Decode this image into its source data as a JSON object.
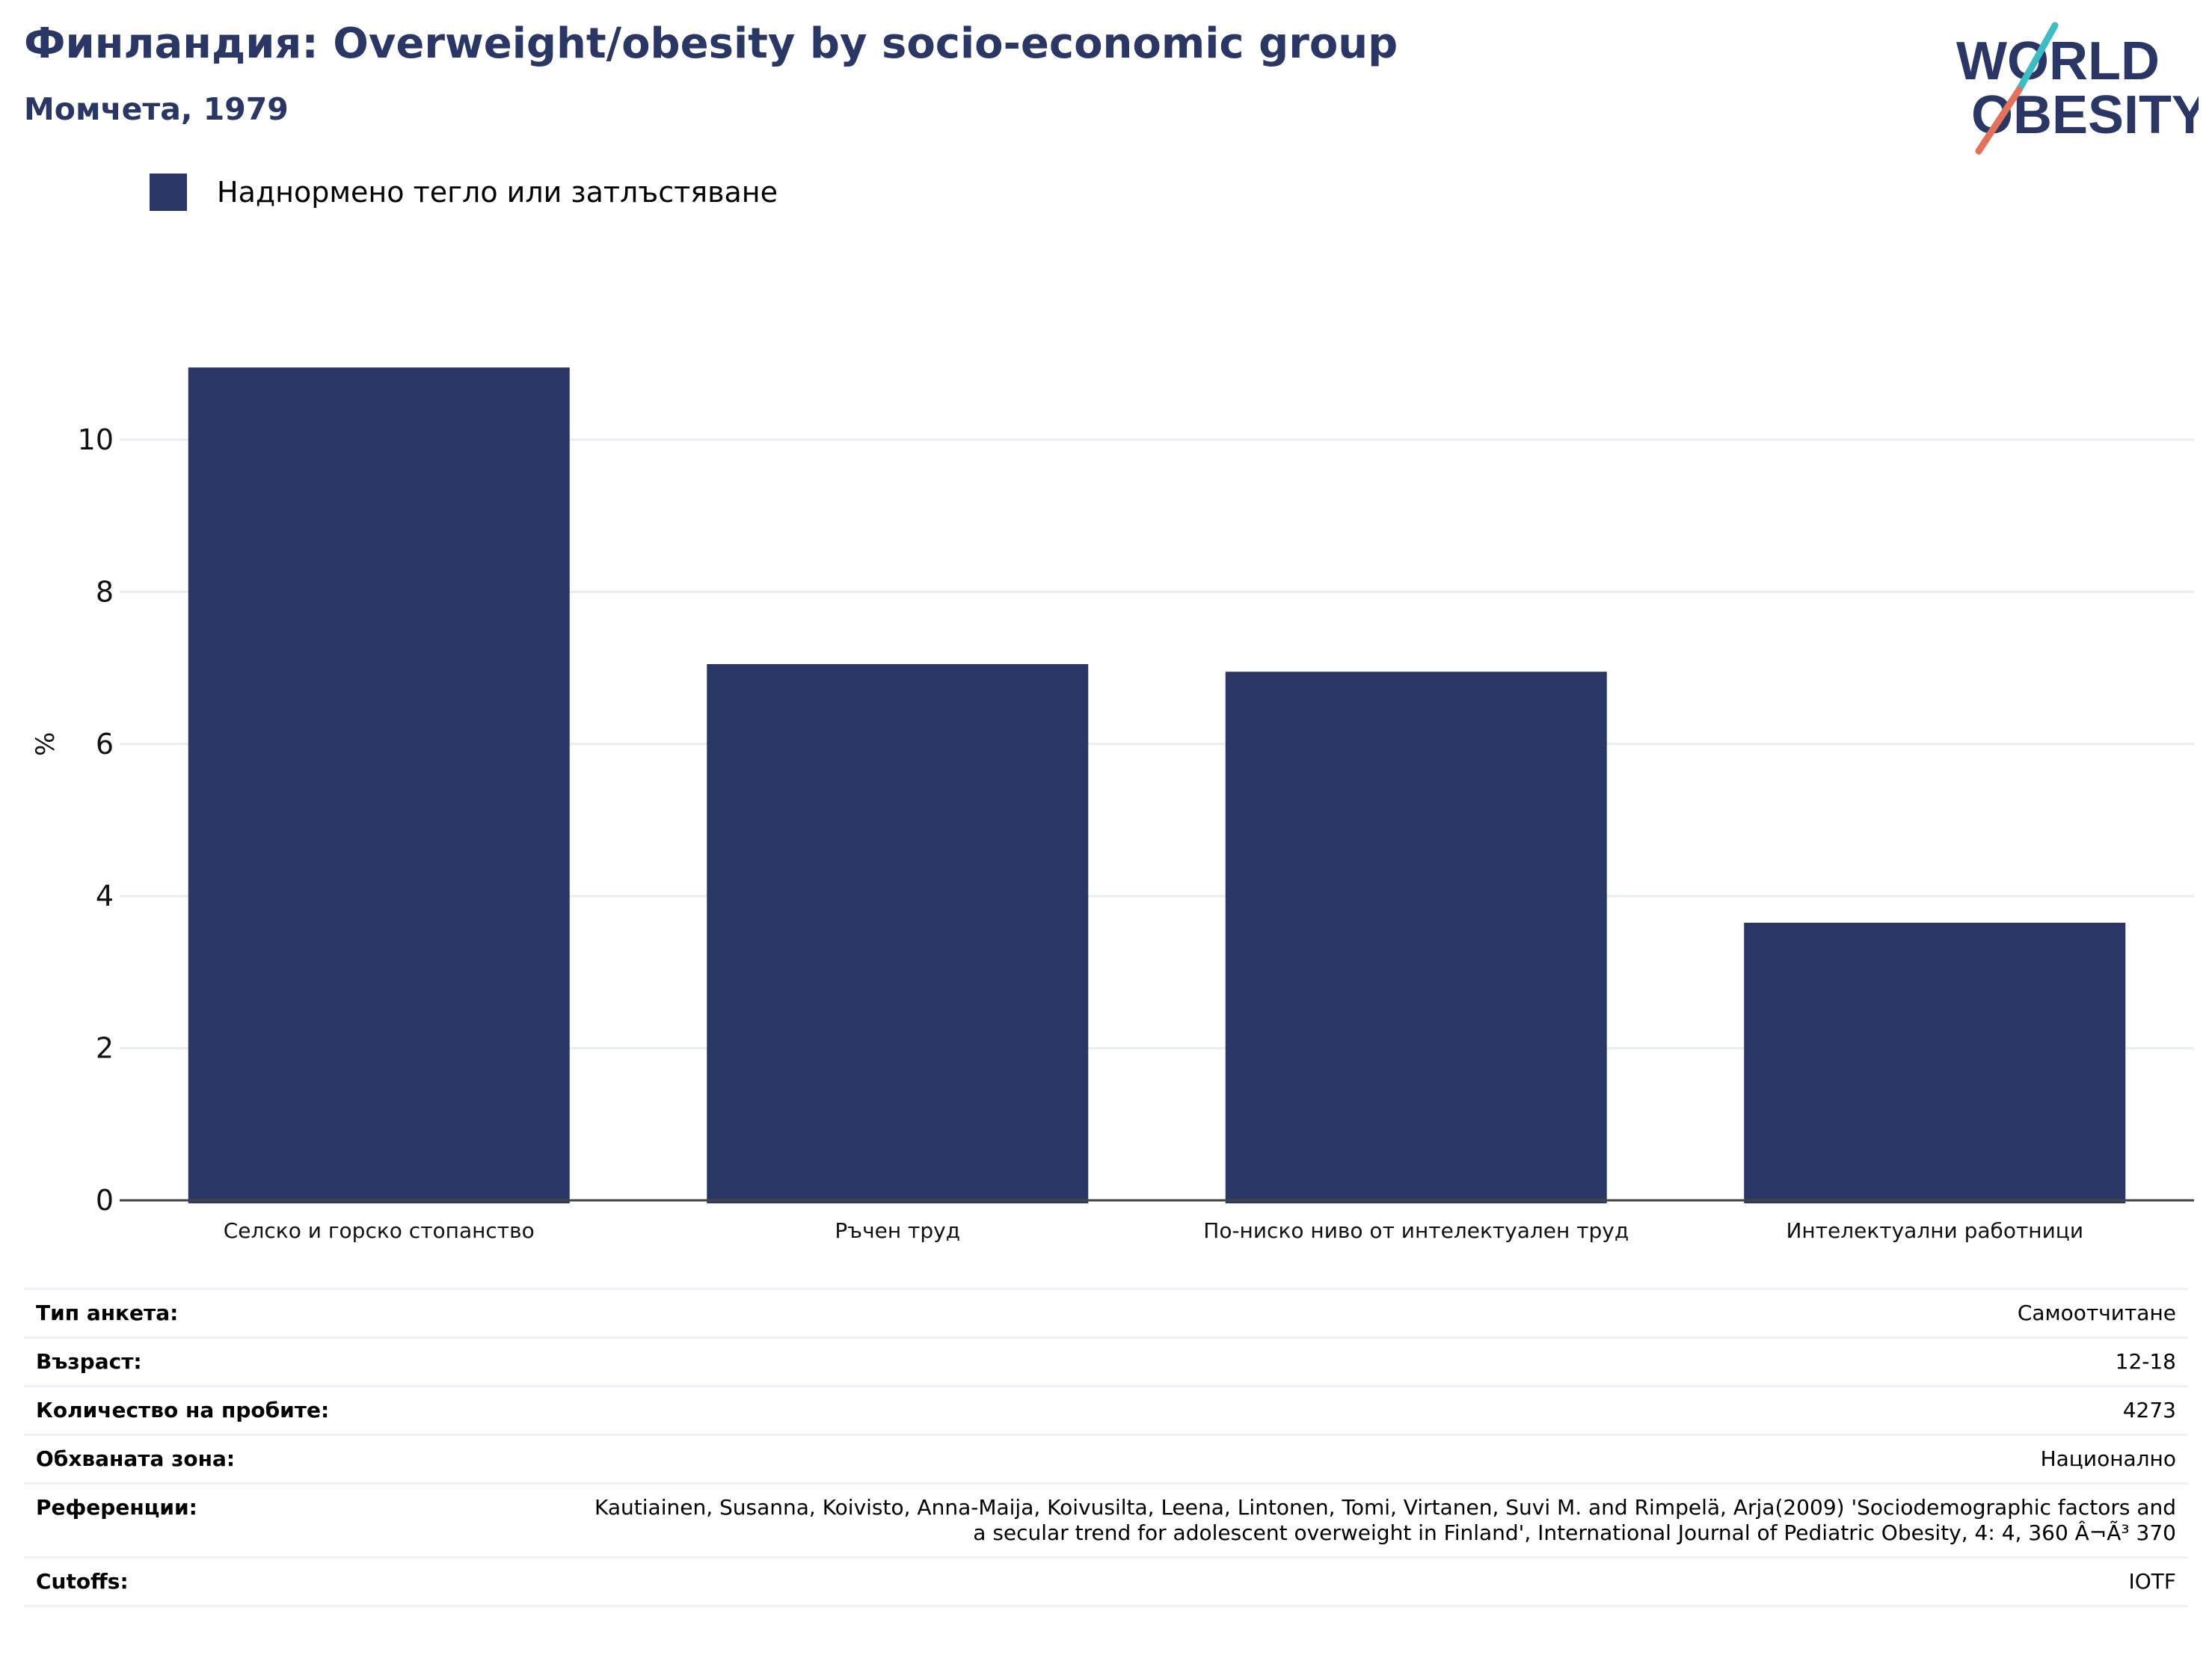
{
  "header": {
    "title": "Финландия: Overweight/obesity by socio-economic group",
    "subtitle": "Момчета, 1979"
  },
  "logo": {
    "line1": "WORLD",
    "line2": "OBESITY",
    "brand_color": "#2a3663",
    "accent_teal": "#3dbcc4",
    "accent_coral": "#e2725b"
  },
  "legend": {
    "label": "Наднормено тегло или затлъстяване",
    "color": "#2a3663"
  },
  "chart_data": {
    "type": "bar",
    "categories": [
      "Селско и горско стопанство",
      "Ръчен труд",
      "По-ниско ниво от интелектуален труд",
      "Интелектуални работници"
    ],
    "series": [
      {
        "name": "Наднормено тегло или затлъстяване",
        "values": [
          10.95,
          7.05,
          6.95,
          3.65
        ],
        "color": "#2a3663"
      }
    ],
    "ylabel": "%",
    "ylim": [
      0,
      11.5
    ],
    "yticks": [
      0,
      2,
      4,
      6,
      8,
      10
    ],
    "grid": true,
    "legend_position": "top-left"
  },
  "info": {
    "rows": [
      {
        "key": "Тип анкета:",
        "value": "Самоотчитане"
      },
      {
        "key": "Възраст:",
        "value": "12-18"
      },
      {
        "key": "Количество на пробите:",
        "value": "4273"
      },
      {
        "key": "Обхваната зона:",
        "value": "Национално"
      },
      {
        "key": "Референции:",
        "value": "Kautiainen, Susanna, Koivisto, Anna-Maija, Koivusilta, Leena, Lintonen, Tomi, Virtanen, Suvi M. and Rimpelä, Arja(2009) 'Sociodemographic factors and a secular trend for adolescent overweight in Finland', International Journal of Pediatric Obesity, 4: 4, 360 Â¬Ã³ 370"
      },
      {
        "key": "Cutoffs:",
        "value": "IOTF"
      }
    ]
  }
}
